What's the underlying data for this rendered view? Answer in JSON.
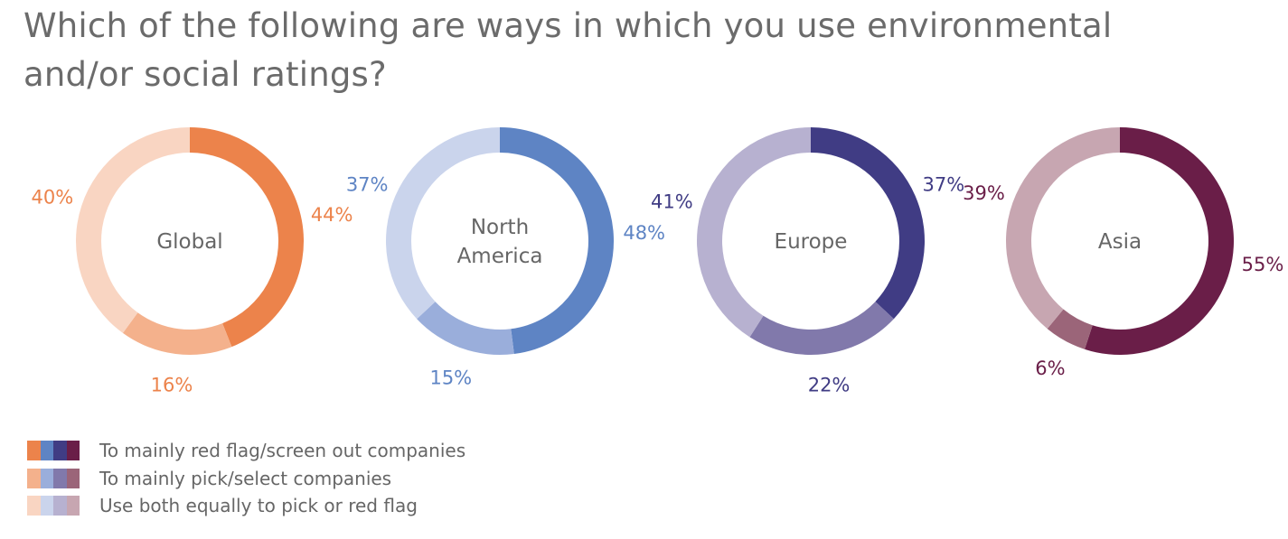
{
  "title": "Which of the following are ways in which you use environmental and/or social ratings?",
  "legend": [
    "To mainly red flag/screen out companies",
    "To mainly pick/select companies",
    "Use both equally to pick or red flag"
  ],
  "chart_data": [
    {
      "type": "pie",
      "region": [
        "Global"
      ],
      "segments": [
        {
          "name": "To mainly red flag/screen out companies",
          "value": 44,
          "label": "44%",
          "color": "#ec834b"
        },
        {
          "name": "To mainly pick/select companies",
          "value": 16,
          "label": "16%",
          "color": "#f4b18c"
        },
        {
          "name": "Use both equally to pick or red flag",
          "value": 40,
          "label": "40%",
          "color": "#f9d5c2"
        }
      ],
      "label_color": "#ec834b",
      "center_color": "#666666"
    },
    {
      "type": "pie",
      "region": [
        "North",
        "America"
      ],
      "segments": [
        {
          "name": "To mainly red flag/screen out companies",
          "value": 48,
          "label": "48%",
          "color": "#5e84c4"
        },
        {
          "name": "To mainly pick/select companies",
          "value": 15,
          "label": "15%",
          "color": "#9aaedb"
        },
        {
          "name": "Use both equally to pick or red flag",
          "value": 37,
          "label": "37%",
          "color": "#cad4ec"
        }
      ],
      "label_color": "#5e84c4",
      "center_color": "#666666"
    },
    {
      "type": "pie",
      "region": [
        "Europe"
      ],
      "segments": [
        {
          "name": "To mainly red flag/screen out companies",
          "value": 37,
          "label": "37%",
          "color": "#403c84"
        },
        {
          "name": "To mainly pick/select companies",
          "value": 22,
          "label": "22%",
          "color": "#8179ab"
        },
        {
          "name": "Use both equally to pick or red flag",
          "value": 41,
          "label": "41%",
          "color": "#b7b1d0"
        }
      ],
      "label_color": "#403c84",
      "center_color": "#666666"
    },
    {
      "type": "pie",
      "region": [
        "Asia"
      ],
      "segments": [
        {
          "name": "To mainly red flag/screen out companies",
          "value": 55,
          "label": "55%",
          "color": "#6a1e48"
        },
        {
          "name": "To mainly pick/select companies",
          "value": 6,
          "label": "6%",
          "color": "#9b6579"
        },
        {
          "name": "Use both equally to pick or red flag",
          "value": 39,
          "label": "39%",
          "color": "#c7a6b1"
        }
      ],
      "label_color": "#6a1e48",
      "center_color": "#666666"
    }
  ]
}
